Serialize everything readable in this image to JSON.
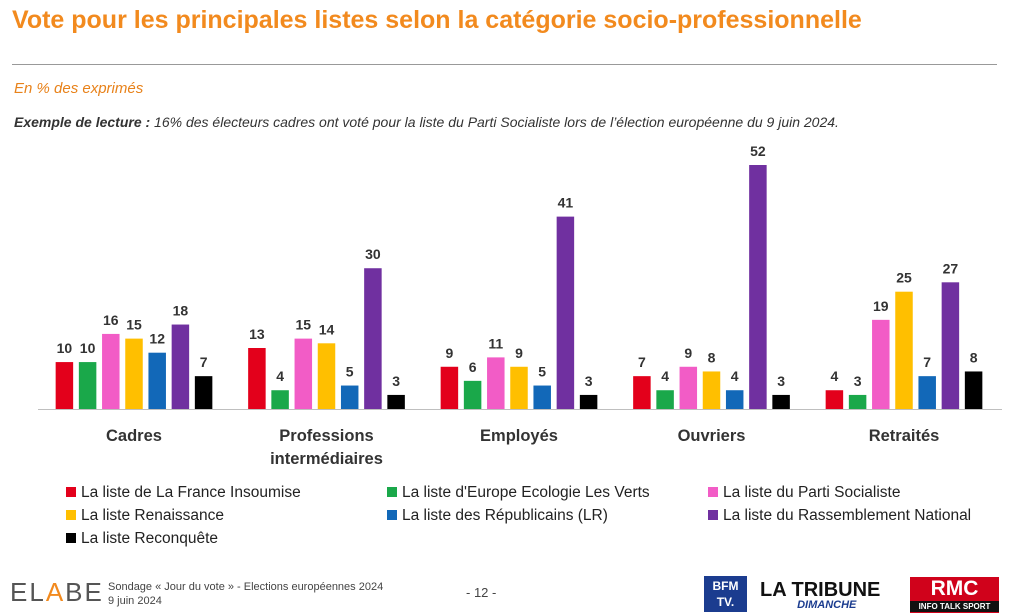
{
  "header": {
    "title": "Vote pour les principales listes selon la catégorie socio-professionnelle",
    "unit_note": "En % des exprimés",
    "reading_label": "Exemple de lecture :",
    "reading_text": " 16% des électeurs cadres ont voté pour la liste du Parti Socialiste lors de l’élection européenne du 9 juin 2024."
  },
  "chart_data": {
    "type": "bar",
    "categories": [
      "Cadres",
      "Professions intermédiaires",
      "Employés",
      "Ouvriers",
      "Retraités"
    ],
    "category_lines": [
      [
        "Cadres"
      ],
      [
        "Professions",
        "intermédiaires"
      ],
      [
        "Employés"
      ],
      [
        "Ouvriers"
      ],
      [
        "Retraités"
      ]
    ],
    "series": [
      {
        "name": "La liste de La France Insoumise",
        "color": "#e3001b",
        "values": [
          10,
          13,
          9,
          7,
          4
        ]
      },
      {
        "name": "La liste d'Europe Ecologie Les Verts",
        "color": "#1aa84a",
        "values": [
          10,
          4,
          6,
          4,
          3
        ]
      },
      {
        "name": "La liste du Parti Socialiste",
        "color": "#f25cc6",
        "values": [
          16,
          15,
          11,
          9,
          19
        ]
      },
      {
        "name": "La liste Renaissance",
        "color": "#ffbf00",
        "values": [
          15,
          14,
          9,
          8,
          25
        ]
      },
      {
        "name": "La liste des Républicains (LR)",
        "color": "#1268b8",
        "values": [
          12,
          5,
          5,
          4,
          7
        ]
      },
      {
        "name": "La liste du Rassemblement National",
        "color": "#7030a0",
        "values": [
          18,
          30,
          41,
          52,
          27
        ]
      },
      {
        "name": "La liste Reconquête",
        "color": "#000000",
        "values": [
          7,
          3,
          3,
          3,
          8
        ]
      }
    ],
    "ylim": [
      0,
      52
    ],
    "legend_position": "bottom"
  },
  "footer": {
    "brand_prefix": "EL",
    "brand_mark": "A",
    "brand_suffix": "BE",
    "survey_line": "Sondage « Jour du vote » - Elections européennes 2024",
    "date_line": "9 juin 2024",
    "page": "- 12 -",
    "logos": {
      "bfm_top": "BFM",
      "bfm_bottom": "TV.",
      "tribune_main": "LA TRIBUNE",
      "tribune_sub": "DIMANCHE",
      "rmc_main": "RMC",
      "rmc_sub": "INFO TALK SPORT"
    }
  }
}
